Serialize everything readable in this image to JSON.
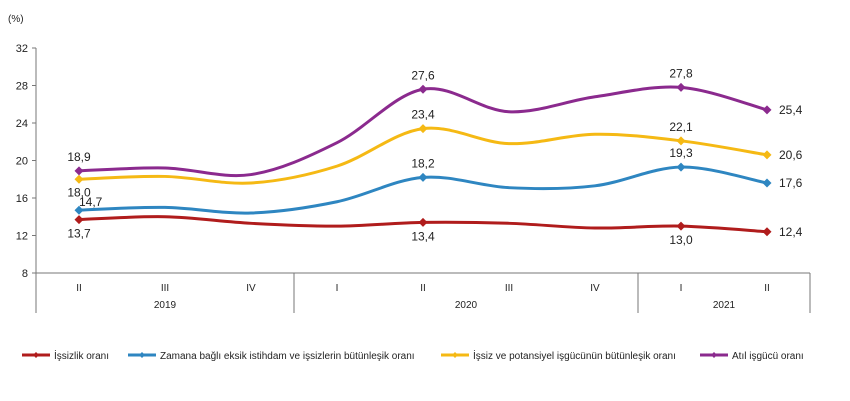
{
  "chart_data": {
    "type": "line",
    "unit_label": "(%)",
    "ylim": [
      8,
      32
    ],
    "yticks": [
      "8",
      "12",
      "16",
      "20",
      "24",
      "28",
      "32"
    ],
    "categories": [
      "II",
      "III",
      "IV",
      "I",
      "II",
      "III",
      "IV",
      "I",
      "II"
    ],
    "years": [
      {
        "label": "2019",
        "start": 0,
        "end": 2
      },
      {
        "label": "2020",
        "start": 3,
        "end": 6
      },
      {
        "label": "2021",
        "start": 7,
        "end": 8
      }
    ],
    "series": [
      {
        "name": "İşsizlik oranı",
        "color": "#b01c1c",
        "values": [
          13.7,
          14.0,
          13.3,
          13.0,
          13.4,
          13.3,
          12.8,
          13.0,
          12.4
        ],
        "labels": [
          {
            "index": 0,
            "text": "13,7"
          },
          {
            "index": 4,
            "text": "13,4"
          },
          {
            "index": 7,
            "text": "13,0"
          },
          {
            "index": 8,
            "text": "12,4"
          }
        ]
      },
      {
        "name": "Zamana bağlı eksik istihdam ve işsizlerin bütünleşik oranı",
        "color": "#2e86c1",
        "values": [
          14.7,
          15.0,
          14.4,
          15.6,
          18.2,
          17.1,
          17.3,
          19.3,
          17.6
        ],
        "labels": [
          {
            "index": 0,
            "text": "14,7"
          },
          {
            "index": 4,
            "text": "18,2"
          },
          {
            "index": 7,
            "text": "19,3"
          },
          {
            "index": 8,
            "text": "17,6"
          }
        ]
      },
      {
        "name": "İşsiz ve potansiyel işgücünün bütünleşik oranı",
        "color": "#f5b914",
        "values": [
          18.0,
          18.3,
          17.6,
          19.4,
          23.4,
          21.8,
          22.8,
          22.1,
          20.6
        ],
        "labels": [
          {
            "index": 0,
            "text": "18,0"
          },
          {
            "index": 4,
            "text": "23,4"
          },
          {
            "index": 7,
            "text": "22,1"
          },
          {
            "index": 8,
            "text": "20,6"
          }
        ]
      },
      {
        "name": "Atıl işgücü oranı",
        "color": "#8b2a8e",
        "values": [
          18.9,
          19.2,
          18.5,
          21.9,
          27.6,
          25.2,
          26.8,
          27.8,
          25.4
        ],
        "labels": [
          {
            "index": 0,
            "text": "18,9"
          },
          {
            "index": 4,
            "text": "27,6"
          },
          {
            "index": 7,
            "text": "27,8"
          },
          {
            "index": 8,
            "text": "25,4"
          }
        ]
      }
    ],
    "grid": false,
    "legend_position": "bottom"
  }
}
